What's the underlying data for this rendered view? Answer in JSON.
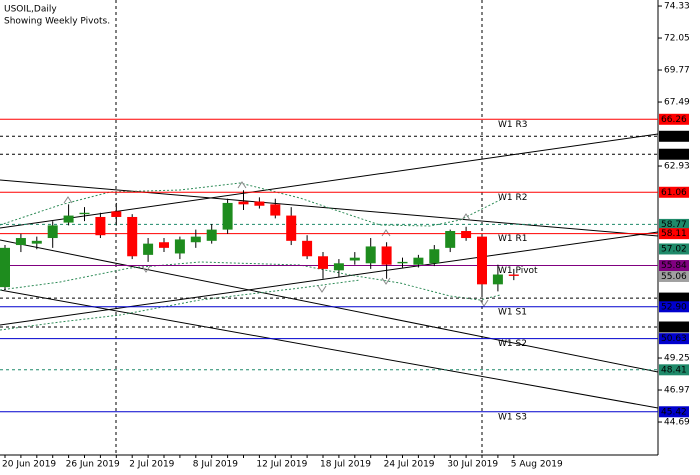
{
  "header": {
    "symbol": "USOIL,Daily",
    "note": "Showing Weekly Pivots."
  },
  "chart_data": {
    "type": "candlestick",
    "categories": [
      "20 Jun 2019",
      null,
      null,
      null,
      "26 Jun 2019",
      null,
      null,
      null,
      "2 Jul 2019",
      null,
      null,
      null,
      "8 Jul 2019",
      null,
      null,
      null,
      "12 Jul 2019",
      null,
      null,
      null,
      "18 Jul 2019",
      null,
      null,
      null,
      "24 Jul 2019",
      null,
      null,
      null,
      "30 Jul 2019",
      null,
      null,
      null,
      "5 Aug 2019"
    ],
    "open": [
      54.3,
      57.3,
      57.4,
      57.8,
      58.9,
      59.5,
      59.3,
      59.7,
      59.3,
      56.6,
      57.5,
      56.7,
      57.5,
      57.6,
      58.4,
      60.4,
      60.4,
      60.2,
      59.4,
      57.6,
      56.5,
      55.5,
      56.2,
      56.0,
      57.2,
      56.0,
      55.9,
      56.0,
      57.1,
      58.3,
      57.9,
      54.5,
      55.2
    ],
    "high": [
      57.3,
      58.1,
      57.9,
      59.0,
      60.2,
      60.0,
      59.6,
      60.3,
      59.5,
      57.8,
      57.8,
      57.9,
      58.4,
      58.8,
      60.6,
      61.2,
      60.7,
      60.6,
      60.0,
      58.0,
      56.8,
      56.3,
      56.8,
      57.8,
      57.5,
      56.4,
      56.6,
      57.3,
      58.4,
      58.6,
      58.0,
      55.9,
      55.6
    ],
    "low": [
      54.1,
      56.8,
      57.0,
      57.1,
      58.7,
      59.0,
      57.8,
      58.7,
      56.3,
      56.1,
      56.8,
      56.3,
      57.1,
      57.4,
      58.1,
      59.8,
      59.9,
      59.2,
      57.3,
      56.3,
      54.9,
      55.0,
      55.9,
      55.6,
      54.9,
      55.7,
      55.7,
      55.8,
      56.8,
      57.6,
      53.7,
      54.0,
      54.8
    ],
    "close": [
      57.1,
      57.8,
      57.6,
      58.7,
      59.4,
      59.6,
      58.0,
      59.3,
      56.5,
      57.4,
      57.1,
      57.7,
      57.9,
      58.4,
      60.3,
      60.2,
      60.1,
      59.4,
      57.6,
      56.5,
      55.6,
      56.0,
      56.4,
      57.2,
      55.9,
      56.1,
      56.4,
      57.0,
      58.3,
      57.8,
      54.5,
      55.2,
      55.1
    ],
    "bull_color": "#1e8c1e",
    "bear_color": "#ff0000",
    "ylim": [
      42.34,
      74.76
    ],
    "yticks": [
      74.33,
      72.05,
      69.77,
      67.49,
      62.93,
      49.25,
      46.97,
      44.69
    ],
    "levels": [
      {
        "value": 66.26,
        "label": "66.26",
        "color": "#ff0000",
        "style": "solid",
        "name": "W1 R3"
      },
      {
        "value": 65.05,
        "label": "65.05",
        "color": "#000000",
        "style": "dashed"
      },
      {
        "value": 63.77,
        "label": "63.77",
        "color": "#000000",
        "style": "dashed"
      },
      {
        "value": 61.06,
        "label": "61.06",
        "color": "#ff0000",
        "style": "solid",
        "name": "W1 R2"
      },
      {
        "value": 58.77,
        "label": "58.77",
        "color": "#1f8a6a",
        "style": "dashed"
      },
      {
        "value": 58.11,
        "label": "58.11",
        "color": "#ff0000",
        "style": "solid",
        "name": "W1 R1"
      },
      {
        "value": 57.02,
        "label": "57.02",
        "color": "#1f8a6a",
        "style": "none"
      },
      {
        "value": 55.84,
        "label": "55.84",
        "color": "#800080",
        "style": "solid",
        "name": "W1 Pivot"
      },
      {
        "value": 55.06,
        "label": "55.06",
        "color": "#a0a0a0",
        "style": "none"
      },
      {
        "value": 53.52,
        "label": "53.52",
        "color": "#000000",
        "style": "dashed"
      },
      {
        "value": 52.9,
        "label": "52.90",
        "color": "#0000cd",
        "style": "solid",
        "name": "W1 S1"
      },
      {
        "value": 51.46,
        "label": "51.46",
        "color": "#000000",
        "style": "dashed"
      },
      {
        "value": 50.63,
        "label": "50.63",
        "color": "#0000cd",
        "style": "solid",
        "name": "W1 S2"
      },
      {
        "value": 48.41,
        "label": "48.41",
        "color": "#1f8a6a",
        "style": "dashed"
      },
      {
        "value": 45.42,
        "label": "45.42",
        "color": "#0000cd",
        "style": "solid",
        "name": "W1 S3"
      }
    ]
  }
}
